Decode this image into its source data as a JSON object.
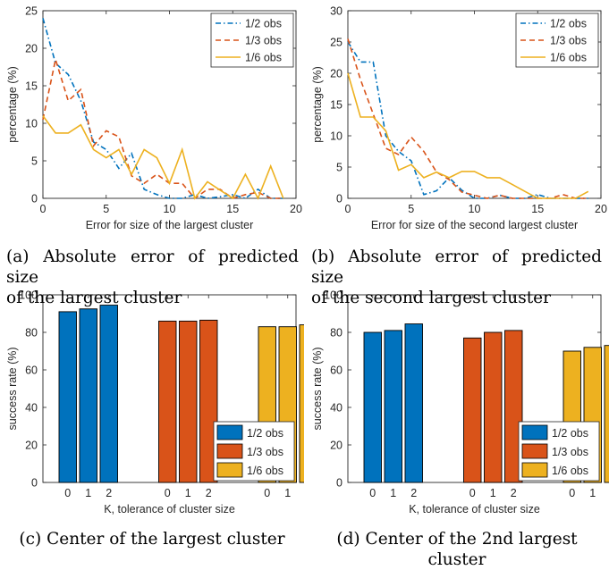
{
  "colors": {
    "blue": "#0072BD",
    "red": "#D95319",
    "yellow": "#EDB120",
    "axis": "#262626",
    "frame": "#000000"
  },
  "chart_data": [
    {
      "type": "line",
      "panel": "a",
      "xlabel": "Error for size of the largest cluster",
      "ylabel": "percentage (%)",
      "xlim": [
        0,
        20
      ],
      "ylim": [
        0,
        25
      ],
      "xticks": [
        0,
        5,
        10,
        15,
        20
      ],
      "yticks": [
        0,
        5,
        10,
        15,
        20,
        25
      ],
      "legend_placement": "top-right",
      "series": [
        {
          "name": "1/2 obs",
          "color": "blue",
          "style": "dashdot",
          "x": [
            0,
            1,
            2,
            3,
            4,
            5,
            6,
            7,
            8,
            9,
            10,
            11,
            12,
            13,
            14,
            15,
            16,
            17,
            18,
            19
          ],
          "y": [
            24,
            18,
            16.5,
            13,
            7.5,
            6.5,
            4,
            6,
            1.2,
            0.5,
            0,
            0,
            0.5,
            0,
            0.2,
            0.5,
            0,
            1.2,
            0,
            0
          ]
        },
        {
          "name": "1/3 obs",
          "color": "red",
          "style": "dashed",
          "x": [
            0,
            1,
            2,
            3,
            4,
            5,
            6,
            7,
            8,
            9,
            10,
            11,
            12,
            13,
            14,
            15,
            16,
            17,
            18,
            19
          ],
          "y": [
            10.5,
            18.5,
            13,
            14.5,
            7,
            9,
            8.2,
            3,
            2,
            3.2,
            2,
            2,
            0,
            1.2,
            1.2,
            0,
            0.5,
            0.8,
            0,
            0
          ]
        },
        {
          "name": "1/6 obs",
          "color": "yellow",
          "style": "solid",
          "x": [
            0,
            1,
            2,
            3,
            4,
            5,
            6,
            7,
            8,
            9,
            10,
            11,
            12,
            13,
            14,
            15,
            16,
            17,
            18,
            19
          ],
          "y": [
            11,
            8.7,
            8.7,
            9.8,
            6.5,
            5.4,
            6.5,
            3.2,
            6.5,
            5.4,
            2,
            6.5,
            0,
            2.2,
            1.1,
            0,
            3.2,
            0,
            4.3,
            0
          ]
        }
      ]
    },
    {
      "type": "line",
      "panel": "b",
      "xlabel": "Error for size of the second largest cluster",
      "ylabel": "percentage (%)",
      "xlim": [
        0,
        20
      ],
      "ylim": [
        0,
        30
      ],
      "xticks": [
        0,
        5,
        10,
        15,
        20
      ],
      "yticks": [
        0,
        5,
        10,
        15,
        20,
        25,
        30
      ],
      "legend_placement": "top-right",
      "series": [
        {
          "name": "1/2 obs",
          "color": "blue",
          "style": "dashdot",
          "x": [
            0,
            1,
            2,
            3,
            4,
            5,
            6,
            7,
            8,
            9,
            10,
            11,
            12,
            13,
            14,
            15,
            16,
            17,
            18,
            19
          ],
          "y": [
            25,
            21.8,
            21.8,
            10,
            7.5,
            6,
            0.6,
            1.2,
            3.3,
            1.3,
            0,
            0,
            0.5,
            0,
            0,
            0.6,
            0,
            0,
            0,
            0
          ]
        },
        {
          "name": "1/3 obs",
          "color": "red",
          "style": "dashed",
          "x": [
            0,
            1,
            2,
            3,
            4,
            5,
            6,
            7,
            8,
            9,
            10,
            11,
            12,
            13,
            14,
            15,
            16,
            17,
            18,
            19
          ],
          "y": [
            25.5,
            19,
            13.5,
            8,
            7,
            9.8,
            7.5,
            4.2,
            3,
            1,
            0.5,
            0,
            0.5,
            0,
            0,
            0,
            0,
            0.6,
            0,
            0
          ]
        },
        {
          "name": "1/6 obs",
          "color": "yellow",
          "style": "solid",
          "x": [
            0,
            1,
            2,
            3,
            4,
            5,
            6,
            7,
            8,
            9,
            10,
            11,
            12,
            13,
            14,
            15,
            16,
            17,
            18,
            19
          ],
          "y": [
            20,
            13,
            13,
            10.8,
            4.5,
            5.4,
            3.3,
            4.2,
            3.3,
            4.3,
            4.3,
            3.3,
            3.3,
            2.2,
            1.1,
            0,
            0,
            0,
            0,
            1.1
          ]
        }
      ]
    },
    {
      "type": "bar",
      "panel": "c",
      "xlabel": "K, tolerance of cluster size",
      "ylabel": "success rate (%)",
      "ylim": [
        0,
        100
      ],
      "yticks": [
        0,
        20,
        40,
        60,
        80,
        100
      ],
      "categories": [
        "0",
        "1",
        "2"
      ],
      "legend_placement": "bottom-right",
      "series": [
        {
          "name": "1/2 obs",
          "color": "blue",
          "values": [
            91,
            92.5,
            94.5
          ]
        },
        {
          "name": "1/3 obs",
          "color": "red",
          "values": [
            86,
            86,
            86.5
          ]
        },
        {
          "name": "1/6 obs",
          "color": "yellow",
          "values": [
            83,
            83,
            84
          ]
        }
      ]
    },
    {
      "type": "bar",
      "panel": "d",
      "xlabel": "K, tolerance of cluster size",
      "ylabel": "success rate (%)",
      "ylim": [
        0,
        100
      ],
      "yticks": [
        0,
        20,
        40,
        60,
        80,
        100
      ],
      "categories": [
        "0",
        "1",
        "2"
      ],
      "legend_placement": "bottom-right",
      "series": [
        {
          "name": "1/2 obs",
          "color": "blue",
          "values": [
            80,
            81,
            84.5
          ]
        },
        {
          "name": "1/3 obs",
          "color": "red",
          "values": [
            77,
            80,
            81
          ]
        },
        {
          "name": "1/6 obs",
          "color": "yellow",
          "values": [
            70,
            72,
            73
          ]
        }
      ]
    }
  ],
  "captions": {
    "a": [
      "(a) Absolute error of predicted size",
      "of the largest cluster"
    ],
    "b": [
      "(b) Absolute error of predicted size",
      "of the second largest cluster"
    ],
    "c": [
      "(c) Center of the largest cluster"
    ],
    "d": [
      "(d) Center of the 2nd largest cluster"
    ]
  }
}
